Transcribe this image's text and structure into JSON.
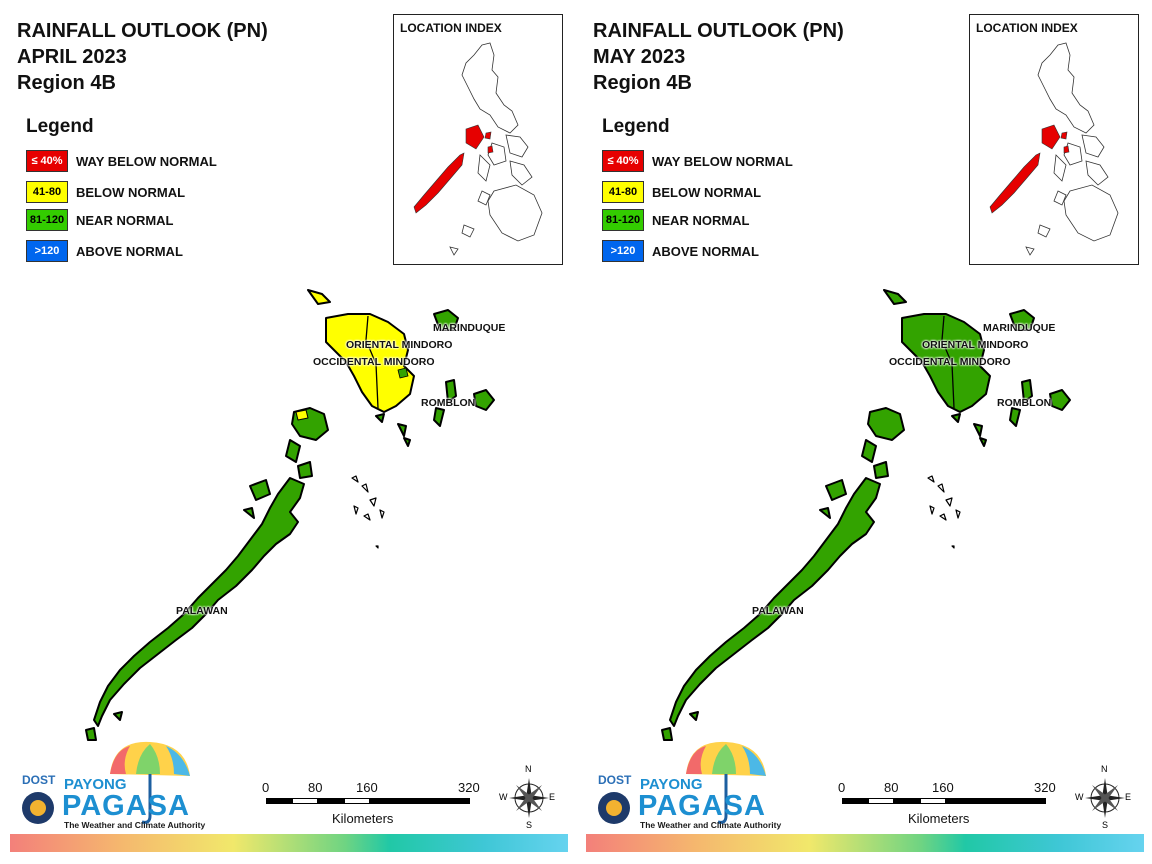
{
  "panels": [
    {
      "title_line1": "RAINFALL OUTLOOK (PN)",
      "title_line2": "APRIL 2023",
      "title_line3": "Region 4B",
      "colors": {
        "mindoro": "#ffff00",
        "marinduque": "#33a300",
        "romblon": "#33a300",
        "palawan": "#33a300"
      }
    },
    {
      "title_line1": "RAINFALL OUTLOOK (PN)",
      "title_line2": "MAY 2023",
      "title_line3": "Region 4B",
      "colors": {
        "mindoro": "#33a300",
        "marinduque": "#33a300",
        "romblon": "#33a300",
        "palawan": "#33a300"
      }
    }
  ],
  "legend": {
    "title": "Legend",
    "items": [
      {
        "swatch": "≤ 40%",
        "label": "WAY BELOW NORMAL",
        "color": "#e60000",
        "text_color": "#ffffff"
      },
      {
        "swatch": "41-80",
        "label": "BELOW NORMAL",
        "color": "#ffff00",
        "text_color": "#000000"
      },
      {
        "swatch": "81-120",
        "label": "NEAR NORMAL",
        "color": "#33cc00",
        "text_color": "#000000"
      },
      {
        "swatch": ">120",
        "label": "ABOVE NORMAL",
        "color": "#0066ee",
        "text_color": "#ffffff"
      }
    ]
  },
  "inset": {
    "label": "LOCATION INDEX",
    "highlight_color": "#e60000"
  },
  "places": {
    "marinduque": "MARINDUQUE",
    "oriental_mindoro": "ORIENTAL MINDORO",
    "occidental_mindoro": "OCCIDENTAL MINDORO",
    "romblon": "ROMBLON",
    "palawan": "PALAWAN"
  },
  "scale": {
    "ticks": [
      "0",
      "80",
      "160",
      "320"
    ],
    "unit": "Kilometers"
  },
  "compass": {
    "n": "N",
    "s": "S",
    "e": "E",
    "w": "W"
  },
  "logo": {
    "dost": "DOST",
    "payong": "PAYONG",
    "pagasa": "PAGASA",
    "tagline": "The Weather and Climate Authority"
  }
}
